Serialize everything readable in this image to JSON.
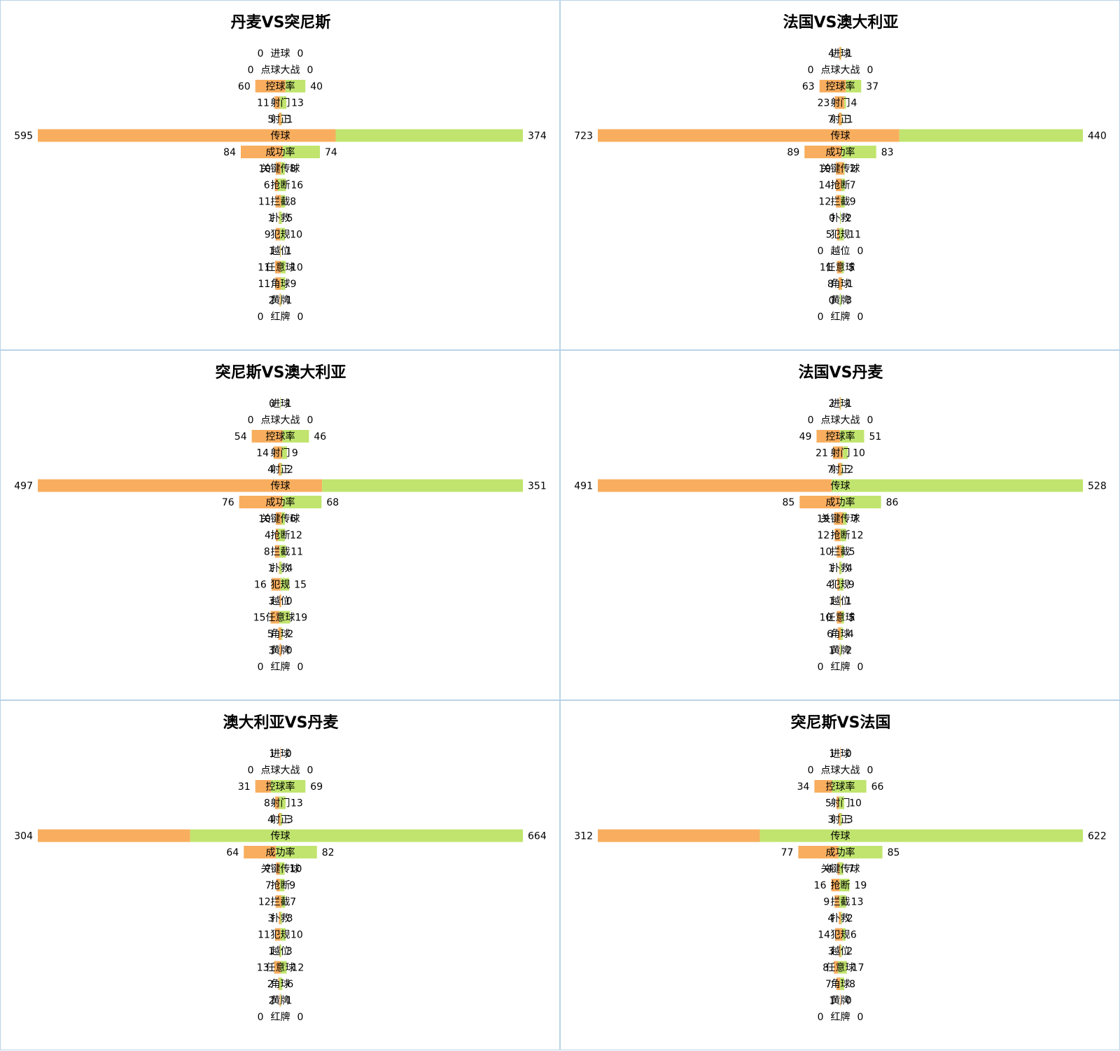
{
  "colors": {
    "left_bar": "#f8ae5e",
    "right_bar": "#c0e46e",
    "panel_border": "#b9d3e6"
  },
  "chart_data": [
    {
      "type": "bar",
      "title": "丹麦VS突尼斯",
      "categories": [
        "进球",
        "点球大战",
        "控球率",
        "射门",
        "射正",
        "传球",
        "成功率",
        "关键传球",
        "抢断",
        "拦截",
        "扑救",
        "犯规",
        "越位",
        "任意球",
        "角球",
        "黄牌",
        "红牌"
      ],
      "series": [
        {
          "values": [
            0,
            0,
            60,
            11,
            5,
            595,
            84,
            10,
            6,
            11,
            1,
            9,
            1,
            11,
            11,
            2,
            0
          ]
        },
        {
          "values": [
            0,
            0,
            40,
            13,
            1,
            374,
            74,
            8,
            16,
            8,
            5,
            10,
            1,
            10,
            9,
            1,
            0
          ]
        }
      ]
    },
    {
      "type": "bar",
      "title": "法国VS澳大利亚",
      "categories": [
        "进球",
        "点球大战",
        "控球率",
        "射门",
        "射正",
        "传球",
        "成功率",
        "关键传球",
        "抢断",
        "拦截",
        "扑救",
        "犯规",
        "越位",
        "任意球",
        "角球",
        "黄牌",
        "红牌"
      ],
      "series": [
        {
          "values": [
            4,
            0,
            63,
            23,
            7,
            723,
            89,
            19,
            14,
            12,
            0,
            5,
            0,
            11,
            8,
            0,
            0
          ]
        },
        {
          "values": [
            1,
            0,
            37,
            4,
            1,
            440,
            83,
            2,
            7,
            9,
            2,
            11,
            0,
            5,
            1,
            3,
            0
          ]
        }
      ]
    },
    {
      "type": "bar",
      "title": "突尼斯VS澳大利亚",
      "categories": [
        "进球",
        "点球大战",
        "控球率",
        "射门",
        "射正",
        "传球",
        "成功率",
        "关键传球",
        "抢断",
        "拦截",
        "扑救",
        "犯规",
        "越位",
        "任意球",
        "角球",
        "黄牌",
        "红牌"
      ],
      "series": [
        {
          "values": [
            0,
            0,
            54,
            14,
            4,
            497,
            76,
            10,
            4,
            8,
            1,
            16,
            3,
            15,
            5,
            3,
            0
          ]
        },
        {
          "values": [
            1,
            0,
            46,
            9,
            2,
            351,
            68,
            6,
            12,
            11,
            4,
            15,
            0,
            19,
            2,
            0,
            0
          ]
        }
      ]
    },
    {
      "type": "bar",
      "title": "法国VS丹麦",
      "categories": [
        "进球",
        "点球大战",
        "控球率",
        "射门",
        "射正",
        "传球",
        "成功率",
        "关键传球",
        "抢断",
        "拦截",
        "扑救",
        "犯规",
        "越位",
        "任意球",
        "角球",
        "黄牌",
        "红牌"
      ],
      "series": [
        {
          "values": [
            2,
            0,
            49,
            21,
            7,
            491,
            85,
            19,
            12,
            10,
            1,
            4,
            1,
            10,
            6,
            1,
            0
          ]
        },
        {
          "values": [
            1,
            0,
            51,
            10,
            2,
            528,
            86,
            7,
            12,
            5,
            4,
            9,
            1,
            5,
            4,
            2,
            0
          ]
        }
      ]
    },
    {
      "type": "bar",
      "title": "澳大利亚VS丹麦",
      "categories": [
        "进球",
        "点球大战",
        "控球率",
        "射门",
        "射正",
        "传球",
        "成功率",
        "关键传球",
        "抢断",
        "拦截",
        "扑救",
        "犯规",
        "越位",
        "任意球",
        "角球",
        "黄牌",
        "红牌"
      ],
      "series": [
        {
          "values": [
            1,
            0,
            31,
            8,
            4,
            304,
            64,
            7,
            7,
            12,
            3,
            11,
            1,
            13,
            2,
            2,
            0
          ]
        },
        {
          "values": [
            0,
            0,
            69,
            13,
            3,
            664,
            82,
            10,
            9,
            7,
            3,
            10,
            3,
            12,
            6,
            1,
            0
          ]
        }
      ]
    },
    {
      "type": "bar",
      "title": "突尼斯VS法国",
      "categories": [
        "进球",
        "点球大战",
        "控球率",
        "射门",
        "射正",
        "传球",
        "成功率",
        "关键传球",
        "抢断",
        "拦截",
        "扑救",
        "犯规",
        "越位",
        "任意球",
        "角球",
        "黄牌",
        "红牌"
      ],
      "series": [
        {
          "values": [
            1,
            0,
            34,
            5,
            3,
            312,
            77,
            4,
            16,
            9,
            4,
            14,
            3,
            8,
            7,
            1,
            0
          ]
        },
        {
          "values": [
            0,
            0,
            66,
            10,
            3,
            622,
            85,
            7,
            19,
            13,
            2,
            6,
            2,
            17,
            8,
            0,
            0
          ]
        }
      ]
    }
  ]
}
